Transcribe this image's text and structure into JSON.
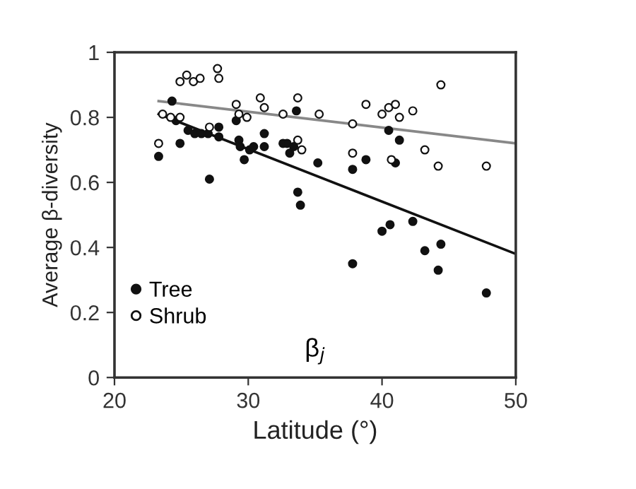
{
  "chart_data": {
    "type": "scatter",
    "xlabel": "Latitude (°)",
    "ylabel": "Average β-diversity",
    "annotations": [
      "β$_{j}$"
    ],
    "xlim": [
      20,
      50
    ],
    "xticks": [
      20,
      30,
      40,
      50
    ],
    "ylim": [
      0,
      1
    ],
    "yticks": [
      0,
      0.2,
      0.4,
      0.6,
      0.8,
      1
    ],
    "grid": false,
    "legend": "bottom left",
    "marker": "circle",
    "series": [
      {
        "name": "Tree",
        "color": "#111111",
        "x": [
          23.3,
          24.3,
          24.9,
          24.6,
          25.5,
          26,
          26.5,
          27,
          27.1,
          27.8,
          27.8,
          29.1,
          29.3,
          29.4,
          29.7,
          30.1,
          30.4,
          31.2,
          31.2,
          32.6,
          32.9,
          33.1,
          33.4,
          33.6,
          33.7,
          33.9,
          35.2,
          37.8,
          38.8,
          40.5,
          41.3,
          41,
          42.3,
          40.6,
          40,
          43.2,
          44.4,
          37.8,
          44.2,
          47.8
        ],
        "values": [
          0.68,
          0.85,
          0.72,
          0.79,
          0.76,
          0.75,
          0.75,
          0.75,
          0.61,
          0.77,
          0.74,
          0.79,
          0.73,
          0.71,
          0.67,
          0.7,
          0.71,
          0.75,
          0.71,
          0.72,
          0.72,
          0.69,
          0.71,
          0.82,
          0.57,
          0.53,
          0.66,
          0.64,
          0.67,
          0.76,
          0.73,
          0.66,
          0.48,
          0.47,
          0.45,
          0.39,
          0.41,
          0.35,
          0.33,
          0.26
        ]
      },
      {
        "name": "Shrub",
        "color": "#ffffff",
        "x": [
          23.3,
          23.6,
          24.2,
          24.9,
          24.9,
          25.4,
          25.9,
          26.4,
          27.7,
          27.8,
          27.1,
          29.1,
          29.3,
          29.9,
          30.9,
          31.2,
          32.6,
          33.7,
          33.7,
          34,
          35.3,
          37.8,
          37.8,
          38.8,
          40,
          40.5,
          41,
          41.3,
          42.3,
          40.7,
          43.2,
          44.2,
          44.4,
          47.8
        ],
        "values": [
          0.72,
          0.81,
          0.8,
          0.8,
          0.91,
          0.93,
          0.91,
          0.92,
          0.95,
          0.92,
          0.77,
          0.84,
          0.81,
          0.8,
          0.86,
          0.83,
          0.81,
          0.86,
          0.73,
          0.7,
          0.81,
          0.78,
          0.69,
          0.84,
          0.81,
          0.83,
          0.84,
          0.8,
          0.82,
          0.67,
          0.7,
          0.65,
          0.9,
          0.65
        ]
      },
      {
        "type": "line",
        "color": "#111111",
        "x": [
          23.3,
          50
        ],
        "values": [
          0.81,
          0.38
        ],
        "marker": "none"
      },
      {
        "type": "line",
        "color": "#888888",
        "x": [
          23.3,
          50
        ],
        "values": [
          0.85,
          0.72
        ],
        "marker": "none"
      }
    ]
  }
}
